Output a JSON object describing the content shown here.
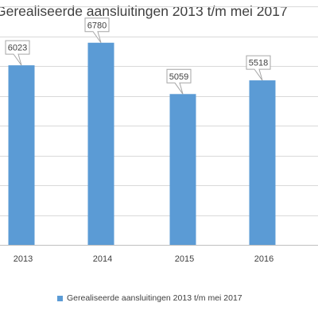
{
  "chart_data": {
    "type": "bar",
    "title": "Gerealiseerde aansluitingen 2013 t/m mei 2017",
    "categories": [
      "2013",
      "2014",
      "2015",
      "2016"
    ],
    "series": [
      {
        "name": "Gerealiseerde aansluitingen 2013 t/m mei 2017",
        "values": [
          6023,
          6780,
          5059,
          5518
        ],
        "color": "#5b9bd5"
      }
    ],
    "ylim": [
      0,
      8000
    ],
    "grid": true,
    "legend_position": "bottom"
  }
}
